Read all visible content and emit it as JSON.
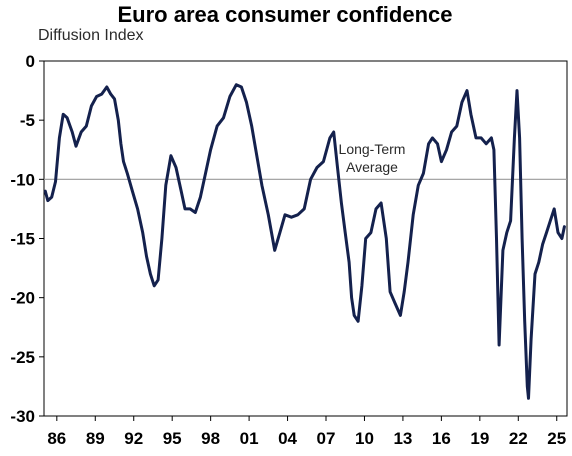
{
  "title": "Euro area consumer confidence",
  "ylabel": "Diffusion Index",
  "chart_data": {
    "type": "line",
    "title": "Euro area consumer confidence",
    "ylabel": "Diffusion Index",
    "xlabel": "",
    "ylim": [
      -30,
      0
    ],
    "yticks": [
      0,
      -5,
      -10,
      -15,
      -20,
      -25,
      -30
    ],
    "ytick_labels": [
      "0",
      "-5",
      "-10",
      "-15",
      "-20",
      "-25",
      "-30"
    ],
    "xlim": [
      1985.0,
      2025.8
    ],
    "xticks": [
      1986,
      1989,
      1992,
      1995,
      1998,
      2001,
      2004,
      2007,
      2010,
      2013,
      2016,
      2019,
      2022,
      2025
    ],
    "xtick_labels": [
      "86",
      "89",
      "92",
      "95",
      "98",
      "01",
      "04",
      "07",
      "10",
      "13",
      "16",
      "19",
      "22",
      "25"
    ],
    "grid": false,
    "reference_line": {
      "y": -10,
      "label_line1": "Long-Term",
      "label_line2": "Average"
    },
    "line_color": "#14214d",
    "reference_color": "#999999",
    "series": [
      {
        "x": [
          1985.1,
          1985.3,
          1985.6,
          1985.9,
          1986.2,
          1986.5,
          1986.8,
          1987.2,
          1987.5,
          1987.9,
          1988.3,
          1988.7,
          1989.1,
          1989.5,
          1989.9,
          1990.2,
          1990.5,
          1990.8,
          1991.0,
          1991.2,
          1991.5,
          1991.9,
          1992.3,
          1992.7,
          1993.0,
          1993.3,
          1993.6,
          1993.9,
          1994.2,
          1994.5,
          1994.9,
          1995.3,
          1995.7,
          1996.0,
          1996.4,
          1996.8,
          1997.2,
          1997.6,
          1998.0,
          1998.5,
          1999.0,
          1999.5,
          2000.0,
          2000.4,
          2000.8,
          2001.2,
          2001.6,
          2002.0,
          2002.5,
          2003.0,
          2003.4,
          2003.8,
          2004.3,
          2004.8,
          2005.3,
          2005.8,
          2006.3,
          2006.8,
          2007.3,
          2007.6,
          2007.9,
          2008.2,
          2008.5,
          2008.8,
          2009.0,
          2009.2,
          2009.5,
          2009.8,
          2010.1,
          2010.5,
          2010.9,
          2011.3,
          2011.7,
          2012.0,
          2012.4,
          2012.8,
          2013.1,
          2013.4,
          2013.8,
          2014.2,
          2014.6,
          2015.0,
          2015.3,
          2015.7,
          2016.0,
          2016.4,
          2016.8,
          2017.2,
          2017.6,
          2018.0,
          2018.3,
          2018.7,
          2019.1,
          2019.5,
          2019.9,
          2020.1,
          2020.3,
          2020.5,
          2020.8,
          2021.1,
          2021.4,
          2021.7,
          2021.9,
          2022.1,
          2022.3,
          2022.5,
          2022.7,
          2022.8,
          2023.0,
          2023.3,
          2023.6,
          2023.9,
          2024.2,
          2024.5,
          2024.8,
          2025.1,
          2025.4,
          2025.6
        ],
        "values": [
          -11.0,
          -11.8,
          -11.5,
          -10.2,
          -6.5,
          -4.5,
          -4.8,
          -6.0,
          -7.2,
          -6.0,
          -5.5,
          -3.8,
          -3.0,
          -2.8,
          -2.2,
          -2.8,
          -3.2,
          -5.0,
          -7.0,
          -8.5,
          -9.5,
          -11.0,
          -12.5,
          -14.5,
          -16.5,
          -18.0,
          -19.0,
          -18.5,
          -15.0,
          -10.5,
          -8.0,
          -9.0,
          -11.0,
          -12.5,
          -12.5,
          -12.8,
          -11.5,
          -9.5,
          -7.5,
          -5.5,
          -4.8,
          -3.0,
          -2.0,
          -2.2,
          -3.5,
          -5.5,
          -8.0,
          -10.5,
          -13.0,
          -16.0,
          -14.5,
          -13.0,
          -13.2,
          -13.0,
          -12.5,
          -10.0,
          -9.0,
          -8.5,
          -6.5,
          -6.0,
          -9.0,
          -12.0,
          -14.5,
          -17.0,
          -20.0,
          -21.5,
          -22.0,
          -19.0,
          -15.0,
          -14.5,
          -12.5,
          -12.0,
          -15.0,
          -19.5,
          -20.5,
          -21.5,
          -19.5,
          -17.0,
          -13.0,
          -10.5,
          -9.5,
          -7.0,
          -6.5,
          -7.0,
          -8.5,
          -7.5,
          -6.0,
          -5.5,
          -3.5,
          -2.5,
          -4.5,
          -6.5,
          -6.5,
          -7.0,
          -6.5,
          -7.5,
          -15.0,
          -24.0,
          -16.0,
          -14.5,
          -13.5,
          -6.5,
          -2.5,
          -6.5,
          -15.0,
          -22.0,
          -27.5,
          -28.5,
          -23.5,
          -18.0,
          -17.0,
          -15.5,
          -14.5,
          -13.5,
          -12.5,
          -14.5,
          -15.0,
          -14.0
        ]
      }
    ]
  }
}
